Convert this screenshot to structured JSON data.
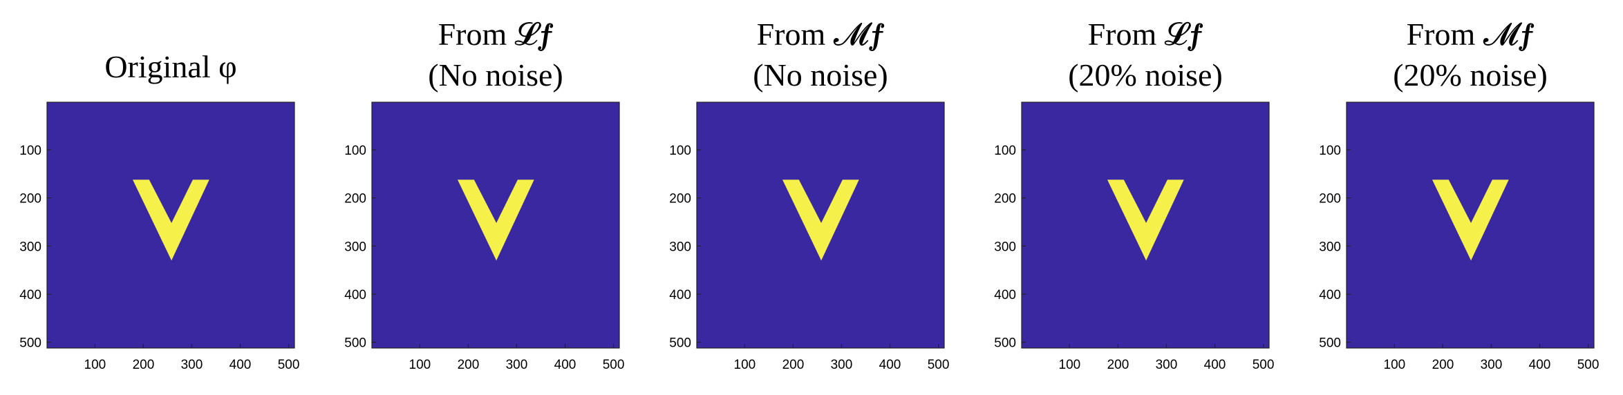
{
  "chart_data": [
    {
      "type": "heatmap",
      "title_lines": [
        "Original φ"
      ],
      "xticks": [
        100,
        200,
        300,
        400,
        500
      ],
      "yticks": [
        100,
        200,
        300,
        400,
        500
      ],
      "xlim": [
        1,
        512
      ],
      "ylim": [
        1,
        512
      ],
      "y_reversed": true,
      "colors": {
        "background": "#3A28A0",
        "shape": "#F6F14A"
      },
      "shape_polygon": [
        [
          178,
          162
        ],
        [
          212,
          162
        ],
        [
          258,
          252
        ],
        [
          302,
          162
        ],
        [
          336,
          162
        ],
        [
          258,
          330
        ]
      ]
    },
    {
      "type": "heatmap",
      "title_lines": [
        "From 𝓛𝒇",
        "(No noise)"
      ],
      "xticks": [
        100,
        200,
        300,
        400,
        500
      ],
      "yticks": [
        100,
        200,
        300,
        400,
        500
      ],
      "xlim": [
        1,
        512
      ],
      "ylim": [
        1,
        512
      ],
      "y_reversed": true,
      "colors": {
        "background": "#3A28A0",
        "shape": "#F6F14A"
      },
      "shape_polygon": [
        [
          178,
          162
        ],
        [
          212,
          162
        ],
        [
          258,
          252
        ],
        [
          302,
          162
        ],
        [
          336,
          162
        ],
        [
          258,
          330
        ]
      ]
    },
    {
      "type": "heatmap",
      "title_lines": [
        "From 𝓜𝒇",
        "(No noise)"
      ],
      "xticks": [
        100,
        200,
        300,
        400,
        500
      ],
      "yticks": [
        100,
        200,
        300,
        400,
        500
      ],
      "xlim": [
        1,
        512
      ],
      "ylim": [
        1,
        512
      ],
      "y_reversed": true,
      "colors": {
        "background": "#3A28A0",
        "shape": "#F6F14A"
      },
      "shape_polygon": [
        [
          178,
          162
        ],
        [
          212,
          162
        ],
        [
          258,
          252
        ],
        [
          302,
          162
        ],
        [
          336,
          162
        ],
        [
          258,
          330
        ]
      ]
    },
    {
      "type": "heatmap",
      "title_lines": [
        "From 𝓛𝒇",
        "(20% noise)"
      ],
      "xticks": [
        100,
        200,
        300,
        400,
        500
      ],
      "yticks": [
        100,
        200,
        300,
        400,
        500
      ],
      "xlim": [
        1,
        512
      ],
      "ylim": [
        1,
        512
      ],
      "y_reversed": true,
      "colors": {
        "background": "#3A28A0",
        "shape": "#F6F14A"
      },
      "shape_polygon": [
        [
          178,
          162
        ],
        [
          212,
          162
        ],
        [
          258,
          252
        ],
        [
          302,
          162
        ],
        [
          336,
          162
        ],
        [
          258,
          330
        ]
      ]
    },
    {
      "type": "heatmap",
      "title_lines": [
        "From 𝓜𝒇",
        "(20% noise)"
      ],
      "xticks": [
        100,
        200,
        300,
        400,
        500
      ],
      "yticks": [
        100,
        200,
        300,
        400,
        500
      ],
      "xlim": [
        1,
        512
      ],
      "ylim": [
        1,
        512
      ],
      "y_reversed": true,
      "colors": {
        "background": "#3A28A0",
        "shape": "#F6F14A"
      },
      "shape_polygon": [
        [
          178,
          162
        ],
        [
          212,
          162
        ],
        [
          258,
          252
        ],
        [
          302,
          162
        ],
        [
          336,
          162
        ],
        [
          258,
          330
        ]
      ]
    }
  ]
}
